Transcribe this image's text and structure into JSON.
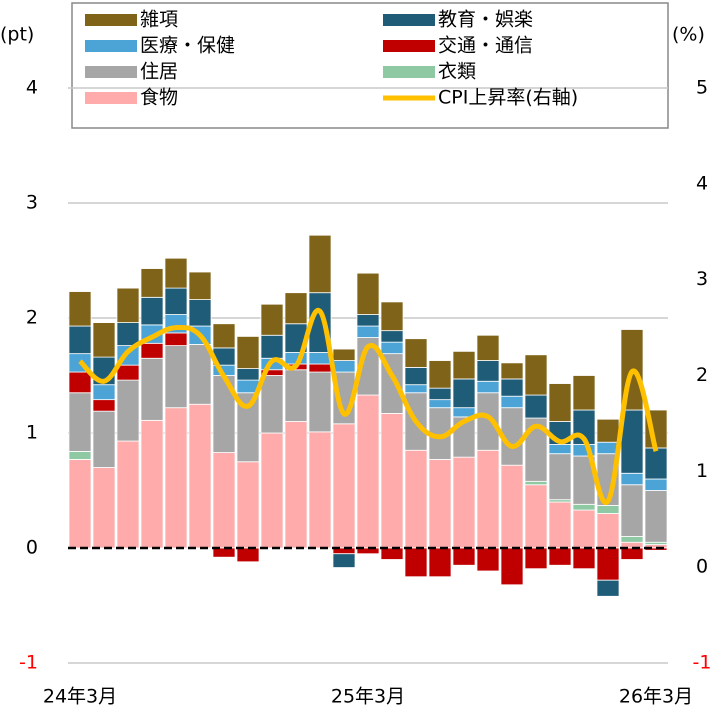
{
  "chart_data": {
    "type": "bar",
    "stacked": true,
    "y_label": "(pt)",
    "y2_label": "(%)",
    "categories": [
      "24年3月",
      null,
      null,
      null,
      null,
      null,
      null,
      null,
      null,
      null,
      null,
      null,
      "25年3月",
      null,
      null,
      null,
      null,
      null,
      null,
      null,
      null,
      null,
      null,
      null,
      "26年3月"
    ],
    "ylim": [
      -1,
      4
    ],
    "yticks": [
      -1,
      0,
      1,
      2,
      3,
      4
    ],
    "y2lim": [
      -1,
      5
    ],
    "y2ticks": [
      -1,
      0,
      1,
      2,
      3,
      4,
      5
    ],
    "negative_tick_color": "#ff0000",
    "grid": true,
    "series": [
      {
        "name": "食物",
        "color": "#ffabab",
        "values": [
          0.77,
          0.7,
          0.93,
          1.11,
          1.22,
          1.25,
          0.83,
          0.75,
          1.0,
          1.1,
          1.01,
          1.08,
          1.33,
          1.17,
          0.85,
          0.77,
          0.79,
          0.85,
          0.72,
          0.55,
          0.4,
          0.33,
          0.3,
          0.05,
          0.03
        ]
      },
      {
        "name": "衣類",
        "color": "#8fc9a4",
        "values": [
          0.07,
          0,
          0,
          0,
          0,
          0,
          0,
          0,
          0,
          0,
          0,
          0,
          0,
          0,
          0,
          0,
          0,
          0,
          0,
          0.03,
          0.02,
          0.05,
          0.07,
          0.05,
          0.02
        ]
      },
      {
        "name": "住居",
        "color": "#a6a6a6",
        "values": [
          0.51,
          0.49,
          0.53,
          0.54,
          0.54,
          0.52,
          0.67,
          0.6,
          0.5,
          0.45,
          0.52,
          0.45,
          0.5,
          0.52,
          0.5,
          0.45,
          0.35,
          0.5,
          0.5,
          0.55,
          0.4,
          0.42,
          0.45,
          0.45,
          0.45
        ]
      },
      {
        "name": "交通・通信",
        "color": "#c00000",
        "values": [
          0.18,
          0.1,
          0.13,
          0.13,
          0.11,
          0,
          -0.08,
          -0.12,
          0.05,
          0.05,
          0.07,
          -0.05,
          -0.05,
          -0.1,
          -0.25,
          -0.25,
          -0.15,
          -0.2,
          -0.32,
          -0.18,
          -0.15,
          -0.18,
          -0.28,
          -0.1,
          -0.02
        ]
      },
      {
        "name": "医療・保健",
        "color": "#4ba3d6",
        "values": [
          0.16,
          0.13,
          0.17,
          0.16,
          0.16,
          0.16,
          0.09,
          0.11,
          0.1,
          0.1,
          0.1,
          0.1,
          0.1,
          0.1,
          0.07,
          0.07,
          0.08,
          0.1,
          0.1,
          0,
          0.08,
          0.1,
          0.1,
          0.1,
          0.1
        ]
      },
      {
        "name": "教育・娯楽",
        "color": "#1f5c78",
        "values": [
          0.24,
          0.24,
          0.2,
          0.24,
          0.23,
          0.23,
          0.15,
          0.1,
          0.2,
          0.25,
          0.52,
          -0.12,
          0.1,
          0.1,
          0.15,
          0.1,
          0.25,
          0.18,
          0.15,
          0.2,
          0.2,
          0.3,
          -0.14,
          0.55,
          0.27
        ]
      },
      {
        "name": "雑項",
        "color": "#7f6318",
        "values": [
          0.3,
          0.3,
          0.3,
          0.25,
          0.26,
          0.24,
          0.21,
          0.28,
          0.27,
          0.27,
          0.5,
          0.1,
          0.36,
          0.25,
          0.25,
          0.24,
          0.24,
          0.22,
          0.14,
          0.35,
          0.33,
          0.3,
          0.2,
          0.7,
          0.33
        ]
      },
      {
        "name": "CPI上昇率(右軸)",
        "type": "line",
        "axis": "y2",
        "color": "#ffc000",
        "values": [
          2.15,
          1.94,
          2.25,
          2.4,
          2.5,
          2.42,
          1.99,
          1.68,
          2.15,
          2.1,
          2.67,
          1.6,
          2.3,
          2.0,
          1.52,
          1.36,
          1.52,
          1.57,
          1.26,
          1.47,
          1.31,
          1.34,
          0.69,
          2.04,
          1.21
        ]
      }
    ]
  }
}
